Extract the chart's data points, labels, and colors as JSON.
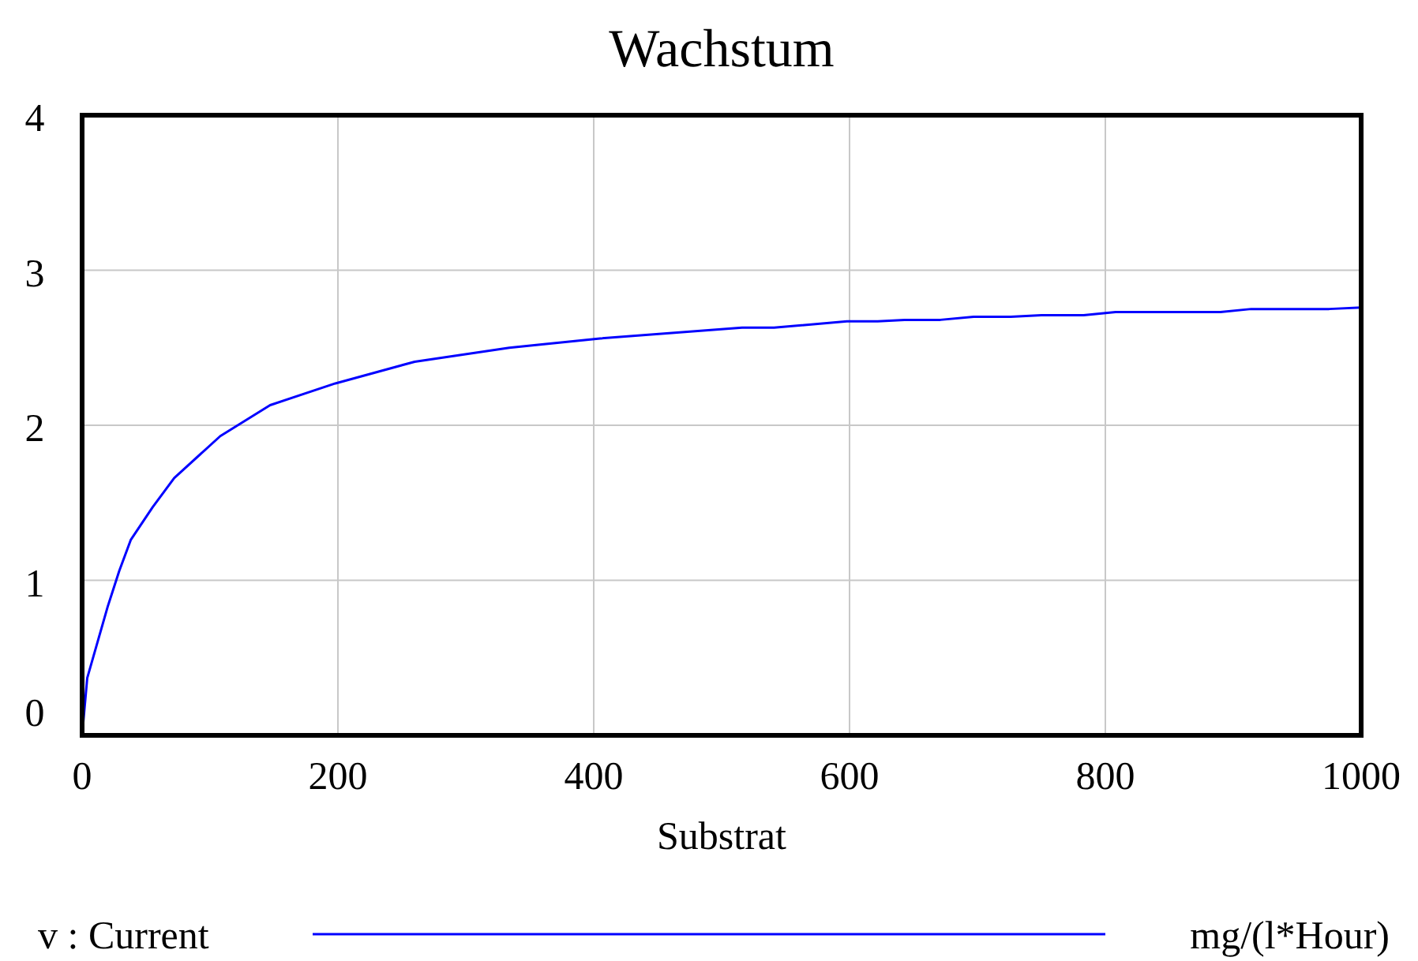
{
  "chart_data": {
    "type": "line",
    "title": "Wachstum",
    "xlabel": "Substrat",
    "x": [
      0,
      4,
      20,
      29,
      38,
      55,
      72,
      108,
      147,
      198,
      260,
      334,
      358,
      405,
      516,
      541,
      598,
      622,
      643,
      671,
      697,
      726,
      750,
      783,
      808,
      890,
      914,
      975,
      1000
    ],
    "series": [
      {
        "name": "v : Current",
        "color": "#0000ff",
        "values": [
          0,
          0.37,
          0.83,
          1.06,
          1.26,
          1.47,
          1.66,
          1.93,
          2.13,
          2.27,
          2.41,
          2.5,
          2.52,
          2.56,
          2.63,
          2.63,
          2.67,
          2.67,
          2.68,
          2.68,
          2.7,
          2.7,
          2.71,
          2.71,
          2.73,
          2.73,
          2.75,
          2.75,
          2.76
        ]
      }
    ],
    "annotations": [
      "mg/(l*Hour)"
    ],
    "xlim": [
      0,
      1000
    ],
    "xticks": [
      0,
      200,
      400,
      600,
      800,
      1000
    ],
    "ylim": [
      0,
      4
    ],
    "yticks": [
      0,
      1,
      2,
      3,
      4
    ],
    "grid": true,
    "legend": "bottom",
    "marker": "none",
    "line_style": "solid"
  }
}
